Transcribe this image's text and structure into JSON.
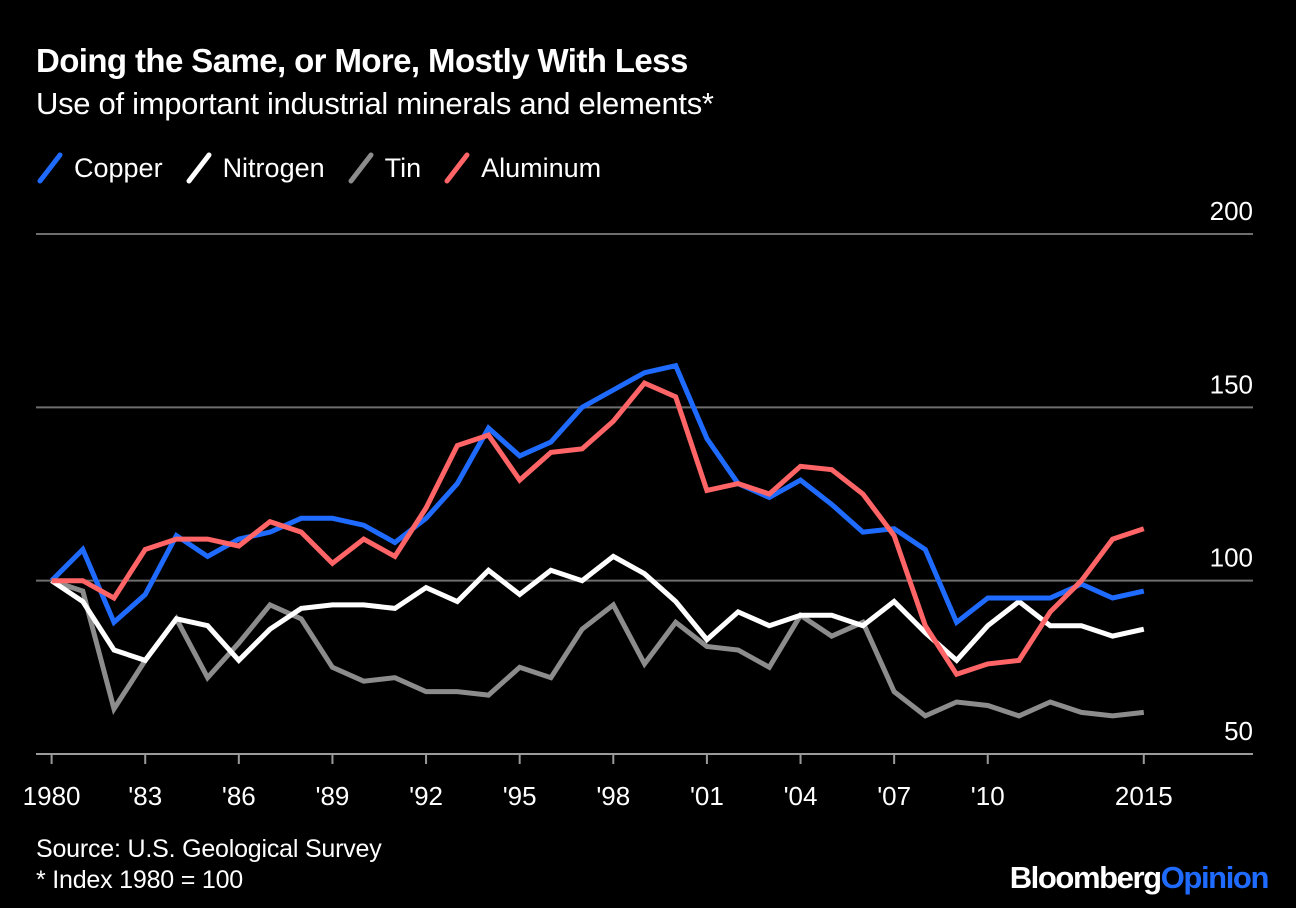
{
  "header": {
    "title": "Doing the Same, or More, Mostly With Less",
    "subtitle": "Use of important industrial minerals and elements*"
  },
  "legend": [
    {
      "label": "Copper",
      "color": "#1f6bff"
    },
    {
      "label": "Nitrogen",
      "color": "#ffffff"
    },
    {
      "label": "Tin",
      "color": "#8c8c8c"
    },
    {
      "label": "Aluminum",
      "color": "#ff6466"
    }
  ],
  "footer": {
    "source": "Source: U.S. Geological Survey",
    "note": "* Index 1980 = 100",
    "logo_brand": "Bloomberg",
    "logo_section": "Opinion"
  },
  "chart_data": {
    "type": "line",
    "title": "Doing the Same, or More, Mostly With Less",
    "subtitle": "Use of important industrial minerals and elements*",
    "xlabel": "",
    "ylabel": "",
    "xlim": [
      1979.5,
      2018.5
    ],
    "ylim": [
      50,
      200
    ],
    "y_ticks": [
      {
        "value": 200,
        "label": "200"
      },
      {
        "value": 150,
        "label": "150"
      },
      {
        "value": 100,
        "label": "100"
      },
      {
        "value": 50,
        "label": "50"
      }
    ],
    "x_ticks": [
      {
        "value": 1980,
        "label": "1980"
      },
      {
        "value": 1983,
        "label": "'83"
      },
      {
        "value": 1986,
        "label": "'86"
      },
      {
        "value": 1989,
        "label": "'89"
      },
      {
        "value": 1992,
        "label": "'92"
      },
      {
        "value": 1995,
        "label": "'95"
      },
      {
        "value": 1998,
        "label": "'98"
      },
      {
        "value": 2001,
        "label": "'01"
      },
      {
        "value": 2004,
        "label": "'04"
      },
      {
        "value": 2007,
        "label": "'07"
      },
      {
        "value": 2010,
        "label": "'10"
      },
      {
        "value": 2015,
        "label": "2015"
      }
    ],
    "grid": true,
    "legend_position": "top-left",
    "x": [
      1980,
      1981,
      1982,
      1983,
      1984,
      1985,
      1986,
      1987,
      1988,
      1989,
      1990,
      1991,
      1992,
      1993,
      1994,
      1995,
      1996,
      1997,
      1998,
      1999,
      2000,
      2001,
      2002,
      2003,
      2004,
      2005,
      2006,
      2007,
      2008,
      2009,
      2010,
      2011,
      2012,
      2013,
      2014,
      2015
    ],
    "series": [
      {
        "name": "Copper",
        "color": "#1f6bff",
        "values": [
          100,
          109,
          88,
          96,
          113,
          107,
          112,
          114,
          118,
          118,
          116,
          111,
          118,
          128,
          144,
          136,
          140,
          150,
          155,
          160,
          162,
          141,
          128,
          124,
          129,
          122,
          114,
          115,
          109,
          88,
          95,
          95,
          95,
          99,
          95,
          97
        ]
      },
      {
        "name": "Nitrogen",
        "color": "#ffffff",
        "values": [
          100,
          94,
          80,
          77,
          89,
          87,
          77,
          86,
          92,
          93,
          93,
          92,
          98,
          94,
          103,
          96,
          103,
          100,
          107,
          102,
          94,
          83,
          91,
          87,
          90,
          90,
          87,
          94,
          85,
          77,
          87,
          94,
          87,
          87,
          84,
          86
        ]
      },
      {
        "name": "Tin",
        "color": "#8c8c8c",
        "values": [
          100,
          97,
          63,
          77,
          89,
          72,
          82,
          93,
          89,
          75,
          71,
          72,
          68,
          68,
          67,
          75,
          72,
          86,
          93,
          76,
          88,
          81,
          80,
          75,
          90,
          84,
          88,
          68,
          61,
          65,
          64,
          61,
          65,
          62,
          61,
          62
        ]
      },
      {
        "name": "Aluminum",
        "color": "#ff6466",
        "values": [
          100,
          100,
          95,
          109,
          112,
          112,
          110,
          117,
          114,
          105,
          112,
          107,
          121,
          139,
          142,
          129,
          137,
          138,
          146,
          157,
          153,
          126,
          128,
          125,
          133,
          132,
          125,
          113,
          87,
          73,
          76,
          77,
          91,
          100,
          112,
          115
        ]
      }
    ]
  }
}
